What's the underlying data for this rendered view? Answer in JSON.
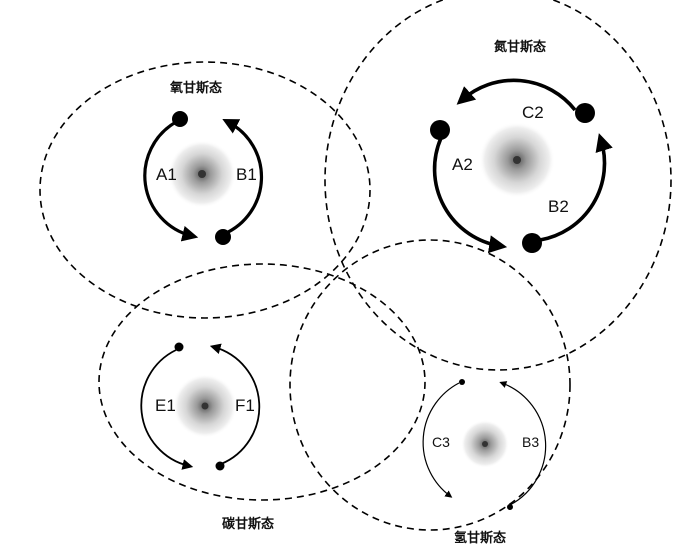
{
  "diagram": {
    "regions": [
      {
        "id": "oxygen",
        "title": "氧甘斯态",
        "labels": [
          "A1",
          "B1"
        ]
      },
      {
        "id": "nitrogen",
        "title": "氮甘斯态",
        "labels": [
          "A2",
          "C2",
          "B2"
        ]
      },
      {
        "id": "carbon",
        "title": "碳甘斯态",
        "labels": [
          "E1",
          "F1"
        ]
      },
      {
        "id": "hydrogen",
        "title": "氢甘斯态",
        "labels": [
          "C3",
          "B3"
        ]
      }
    ]
  }
}
